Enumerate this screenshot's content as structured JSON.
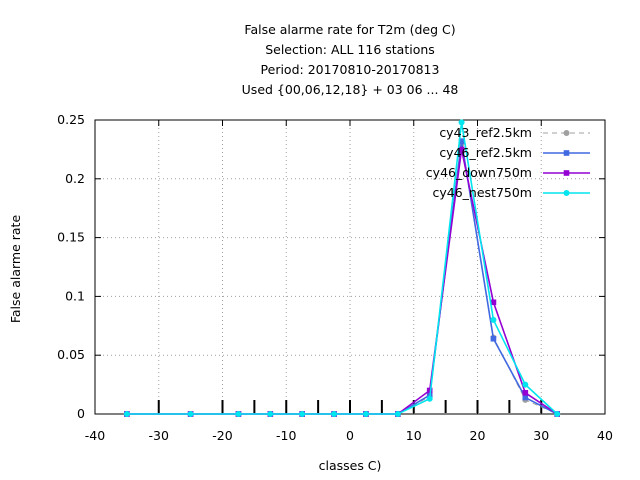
{
  "chart_data": {
    "type": "line",
    "title_lines": [
      "False alarme rate  for T2m (deg C)",
      "Selection: ALL    116 stations",
      "Period: 20170810-20170813",
      "Used {00,06,12,18} + 03 06 ... 48"
    ],
    "xlabel": "classes C)",
    "ylabel": "False alarme rate",
    "xlim": [
      -40,
      40
    ],
    "ylim": [
      0,
      0.25
    ],
    "x_ticks": [
      -40,
      -30,
      -20,
      -10,
      0,
      10,
      20,
      30,
      40
    ],
    "y_ticks": [
      0,
      0.05,
      0.1,
      0.15,
      0.2,
      0.25
    ],
    "x_tick_labels": [
      "-40",
      "-30",
      "-20",
      "-10",
      "0",
      "10",
      "20",
      "30",
      "40"
    ],
    "y_tick_labels": [
      "0",
      "0.05",
      "0.1",
      "0.15",
      "0.2",
      "0.25"
    ],
    "grid": true,
    "legend_position": "top-right",
    "class_markers": [
      -30,
      -20,
      -15,
      -10,
      -5,
      0,
      5,
      10,
      15,
      20,
      25,
      30
    ],
    "x": [
      -35,
      -25,
      -17.5,
      -12.5,
      -7.5,
      -2.5,
      2.5,
      7.5,
      12.5,
      17.5,
      22.5,
      27.5,
      32.5
    ],
    "series": [
      {
        "name": "cy43_ref2.5km",
        "color": "#a0a0a0",
        "dashed": true,
        "marker": "circle",
        "values": [
          0,
          0,
          0,
          0,
          0,
          0,
          0,
          0,
          0.015,
          0.23,
          0.065,
          0.012,
          0
        ]
      },
      {
        "name": "cy46_ref2.5km",
        "color": "#4169e1",
        "dashed": false,
        "marker": "square",
        "values": [
          0,
          0,
          0,
          0,
          0,
          0,
          0,
          0,
          0.016,
          0.232,
          0.064,
          0.014,
          0
        ]
      },
      {
        "name": "cy46_down750m",
        "color": "#9400d3",
        "dashed": false,
        "marker": "square",
        "values": [
          0,
          0,
          0,
          0,
          0,
          0,
          0,
          0,
          0.02,
          0.225,
          0.095,
          0.018,
          0
        ]
      },
      {
        "name": "cy46_nest750m",
        "color": "#00e5ee",
        "dashed": false,
        "marker": "circle",
        "values": [
          0,
          0,
          0,
          0,
          0,
          0,
          0,
          0,
          0.013,
          0.248,
          0.08,
          0.025,
          0
        ]
      }
    ]
  }
}
